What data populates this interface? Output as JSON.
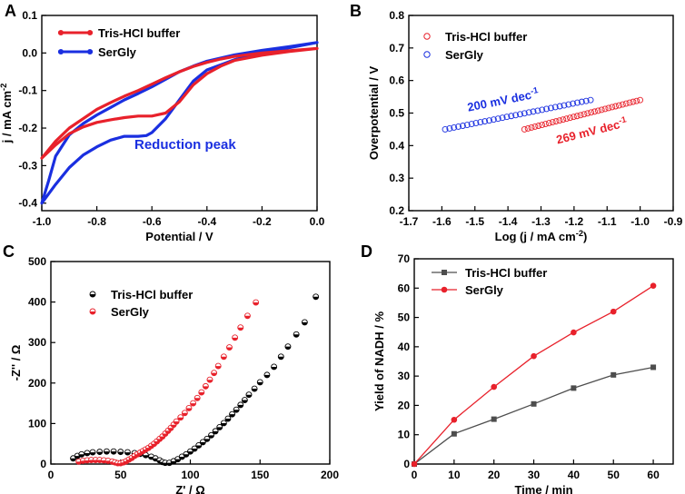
{
  "figure": {
    "panel_labels": [
      "A",
      "B",
      "C",
      "D"
    ]
  },
  "chart_data": [
    {
      "panel": "A",
      "type": "line",
      "xlabel": "Potential / V",
      "ylabel": "j / mA cm-2",
      "xlim": [
        -1.0,
        0.0
      ],
      "ylim": [
        -0.42,
        0.1
      ],
      "xticks": [
        -1.0,
        -0.8,
        -0.6,
        -0.4,
        -0.2,
        0.0
      ],
      "xtick_labels": [
        "-1.0",
        "-0.8",
        "-0.6",
        "-0.4",
        "-0.2",
        "0.0"
      ],
      "yticks": [
        -0.4,
        -0.3,
        -0.2,
        -0.1,
        0.0,
        0.1
      ],
      "ytick_labels": [
        "-0.4",
        "-0.3",
        "-0.2",
        "-0.1",
        "0.0",
        "0.1"
      ],
      "legend": [
        "Tris-HCl buffer",
        "SerGly"
      ],
      "legend_position": "top-left",
      "annotation": "Reduction peak",
      "colors": {
        "Tris-HCl buffer": "#e8212b",
        "SerGly": "#1a2fe0"
      },
      "series": [
        {
          "name": "Tris-HCl buffer",
          "upper": [
            [
              -1.0,
              -0.28
            ],
            [
              -0.95,
              -0.235
            ],
            [
              -0.9,
              -0.2
            ],
            [
              -0.85,
              -0.175
            ],
            [
              -0.8,
              -0.15
            ],
            [
              -0.75,
              -0.132
            ],
            [
              -0.7,
              -0.115
            ],
            [
              -0.65,
              -0.1
            ],
            [
              -0.6,
              -0.083
            ],
            [
              -0.55,
              -0.066
            ],
            [
              -0.5,
              -0.05
            ],
            [
              -0.45,
              -0.036
            ],
            [
              -0.4,
              -0.025
            ],
            [
              -0.35,
              -0.016
            ],
            [
              -0.3,
              -0.009
            ],
            [
              -0.2,
              0.0
            ],
            [
              -0.1,
              0.006
            ],
            [
              0.0,
              0.012
            ]
          ],
          "lower": [
            [
              0.0,
              0.012
            ],
            [
              -0.1,
              0.004
            ],
            [
              -0.2,
              -0.006
            ],
            [
              -0.3,
              -0.02
            ],
            [
              -0.35,
              -0.035
            ],
            [
              -0.4,
              -0.055
            ],
            [
              -0.45,
              -0.085
            ],
            [
              -0.5,
              -0.13
            ],
            [
              -0.55,
              -0.16
            ],
            [
              -0.6,
              -0.168
            ],
            [
              -0.65,
              -0.168
            ],
            [
              -0.7,
              -0.172
            ],
            [
              -0.75,
              -0.178
            ],
            [
              -0.8,
              -0.185
            ],
            [
              -0.85,
              -0.197
            ],
            [
              -0.9,
              -0.215
            ],
            [
              -0.95,
              -0.245
            ],
            [
              -1.0,
              -0.28
            ]
          ]
        },
        {
          "name": "SerGly",
          "upper": [
            [
              -1.0,
              -0.4
            ],
            [
              -0.975,
              -0.34
            ],
            [
              -0.95,
              -0.275
            ],
            [
              -0.9,
              -0.218
            ],
            [
              -0.85,
              -0.188
            ],
            [
              -0.8,
              -0.165
            ],
            [
              -0.75,
              -0.145
            ],
            [
              -0.7,
              -0.125
            ],
            [
              -0.65,
              -0.108
            ],
            [
              -0.6,
              -0.09
            ],
            [
              -0.55,
              -0.07
            ],
            [
              -0.5,
              -0.05
            ],
            [
              -0.45,
              -0.035
            ],
            [
              -0.4,
              -0.022
            ],
            [
              -0.3,
              -0.005
            ],
            [
              -0.2,
              0.007
            ],
            [
              -0.1,
              0.017
            ],
            [
              0.0,
              0.028
            ]
          ],
          "lower": [
            [
              0.0,
              0.028
            ],
            [
              -0.1,
              0.014
            ],
            [
              -0.2,
              0.0
            ],
            [
              -0.3,
              -0.018
            ],
            [
              -0.4,
              -0.045
            ],
            [
              -0.45,
              -0.075
            ],
            [
              -0.5,
              -0.125
            ],
            [
              -0.55,
              -0.175
            ],
            [
              -0.6,
              -0.212
            ],
            [
              -0.62,
              -0.22
            ],
            [
              -0.65,
              -0.222
            ],
            [
              -0.7,
              -0.222
            ],
            [
              -0.75,
              -0.232
            ],
            [
              -0.8,
              -0.25
            ],
            [
              -0.85,
              -0.272
            ],
            [
              -0.9,
              -0.305
            ],
            [
              -0.95,
              -0.35
            ],
            [
              -1.0,
              -0.4
            ]
          ]
        }
      ]
    },
    {
      "panel": "B",
      "type": "scatter",
      "xlabel": "Log (j / mA cm-2)",
      "ylabel": "Overpotential / V",
      "xlim": [
        -1.7,
        -0.9
      ],
      "ylim": [
        0.2,
        0.8
      ],
      "xticks": [
        -1.7,
        -1.6,
        -1.5,
        -1.4,
        -1.3,
        -1.2,
        -1.1,
        -1.0,
        -0.9
      ],
      "xtick_labels": [
        "-1.7",
        "-1.6",
        "-1.5",
        "-1.4",
        "-1.3",
        "-1.2",
        "-1.1",
        "-1.0",
        "-0.9"
      ],
      "yticks": [
        0.2,
        0.3,
        0.4,
        0.5,
        0.6,
        0.7,
        0.8
      ],
      "ytick_labels": [
        "0.2",
        "0.3",
        "0.4",
        "0.5",
        "0.6",
        "0.7",
        "0.8"
      ],
      "legend": [
        "Tris-HCl buffer",
        "SerGly"
      ],
      "legend_position": "top-left",
      "colors": {
        "Tris-HCl buffer": "#e8212b",
        "SerGly": "#1a2fe0"
      },
      "series": [
        {
          "name": "Tris-HCl buffer",
          "x_range": [
            -1.35,
            -1.0
          ],
          "y_range": [
            0.45,
            0.54
          ],
          "annotation": "269 mV dec-1"
        },
        {
          "name": "SerGly",
          "x_range": [
            -1.59,
            -1.15
          ],
          "y_range": [
            0.45,
            0.54
          ],
          "annotation": "200 mV dec-1"
        }
      ]
    },
    {
      "panel": "C",
      "type": "scatter",
      "xlabel": "Z' / Ω",
      "ylabel": "-Z'' / Ω",
      "xlim": [
        0,
        200
      ],
      "ylim": [
        0,
        500
      ],
      "xticks": [
        0,
        50,
        100,
        150,
        200
      ],
      "xtick_labels": [
        "0",
        "50",
        "100",
        "150",
        "200"
      ],
      "yticks": [
        0,
        100,
        200,
        300,
        400,
        500
      ],
      "ytick_labels": [
        "0",
        "100",
        "200",
        "300",
        "400",
        "500"
      ],
      "legend": [
        "Tris-HCl buffer",
        "SerGly"
      ],
      "legend_position": "top-left",
      "colors": {
        "Tris-HCl buffer": "#000000",
        "SerGly": "#e8212b"
      },
      "series": [
        {
          "name": "Tris-HCl buffer",
          "x": [
            16,
            19,
            22,
            26,
            30,
            35,
            40,
            45,
            50,
            55,
            60,
            64,
            68,
            72,
            75,
            78,
            80,
            82,
            85,
            88,
            91,
            94,
            97,
            100,
            103,
            106,
            109,
            112,
            115,
            118,
            121,
            124,
            127,
            130,
            133,
            136,
            139,
            142,
            146,
            150,
            155,
            160,
            165,
            170,
            176,
            182,
            190
          ],
          "y": [
            14,
            20,
            24,
            27,
            29,
            30,
            31,
            31,
            30,
            29,
            27,
            25,
            22,
            18,
            14,
            9,
            5,
            3,
            3,
            7,
            12,
            18,
            24,
            31,
            38,
            46,
            54,
            62,
            71,
            81,
            91,
            101,
            112,
            123,
            134,
            146,
            158,
            171,
            186,
            202,
            220,
            240,
            265,
            290,
            320,
            350,
            413
          ]
        },
        {
          "name": "SerGly",
          "x": [
            20,
            23,
            26,
            29,
            32,
            35,
            38,
            41,
            44,
            46,
            48,
            50,
            52,
            54,
            56,
            58,
            60,
            62,
            64,
            66,
            68,
            70,
            72,
            74,
            76,
            78,
            80,
            82,
            84,
            86,
            88,
            90,
            93,
            96,
            99,
            102,
            105,
            108,
            111,
            114,
            117,
            120,
            124,
            128,
            132,
            136,
            141,
            147
          ],
          "y": [
            6,
            8,
            9,
            10,
            10,
            10,
            9,
            8,
            6,
            4,
            2,
            2,
            4,
            7,
            11,
            15,
            20,
            24,
            28,
            32,
            36,
            40,
            45,
            50,
            56,
            62,
            68,
            75,
            82,
            89,
            97,
            105,
            115,
            126,
            138,
            150,
            163,
            177,
            192,
            208,
            225,
            242,
            265,
            288,
            312,
            337,
            366,
            399
          ]
        }
      ]
    },
    {
      "panel": "D",
      "type": "line",
      "xlabel": "Time / min",
      "ylabel": "Yield of NADH / %",
      "xlim": [
        0,
        65
      ],
      "ylim": [
        0,
        70
      ],
      "xticks": [
        0,
        10,
        20,
        30,
        40,
        50,
        60
      ],
      "xtick_labels": [
        "0",
        "10",
        "20",
        "30",
        "40",
        "50",
        "60"
      ],
      "yticks": [
        0,
        10,
        20,
        30,
        40,
        50,
        60,
        70
      ],
      "ytick_labels": [
        "0",
        "10",
        "20",
        "30",
        "40",
        "50",
        "60",
        "70"
      ],
      "legend": [
        "Tris-HCl buffer",
        "SerGly"
      ],
      "legend_position": "top-left",
      "colors": {
        "Tris-HCl buffer": "#4d4d4d",
        "SerGly": "#e8212b"
      },
      "x": [
        0,
        10,
        20,
        30,
        40,
        50,
        60
      ],
      "series": [
        {
          "name": "Tris-HCl buffer",
          "values": [
            0,
            10.3,
            15.3,
            20.5,
            25.9,
            30.4,
            33.0
          ]
        },
        {
          "name": "SerGly",
          "values": [
            0,
            15.1,
            26.3,
            36.8,
            44.9,
            52.0,
            60.8
          ]
        }
      ]
    }
  ]
}
